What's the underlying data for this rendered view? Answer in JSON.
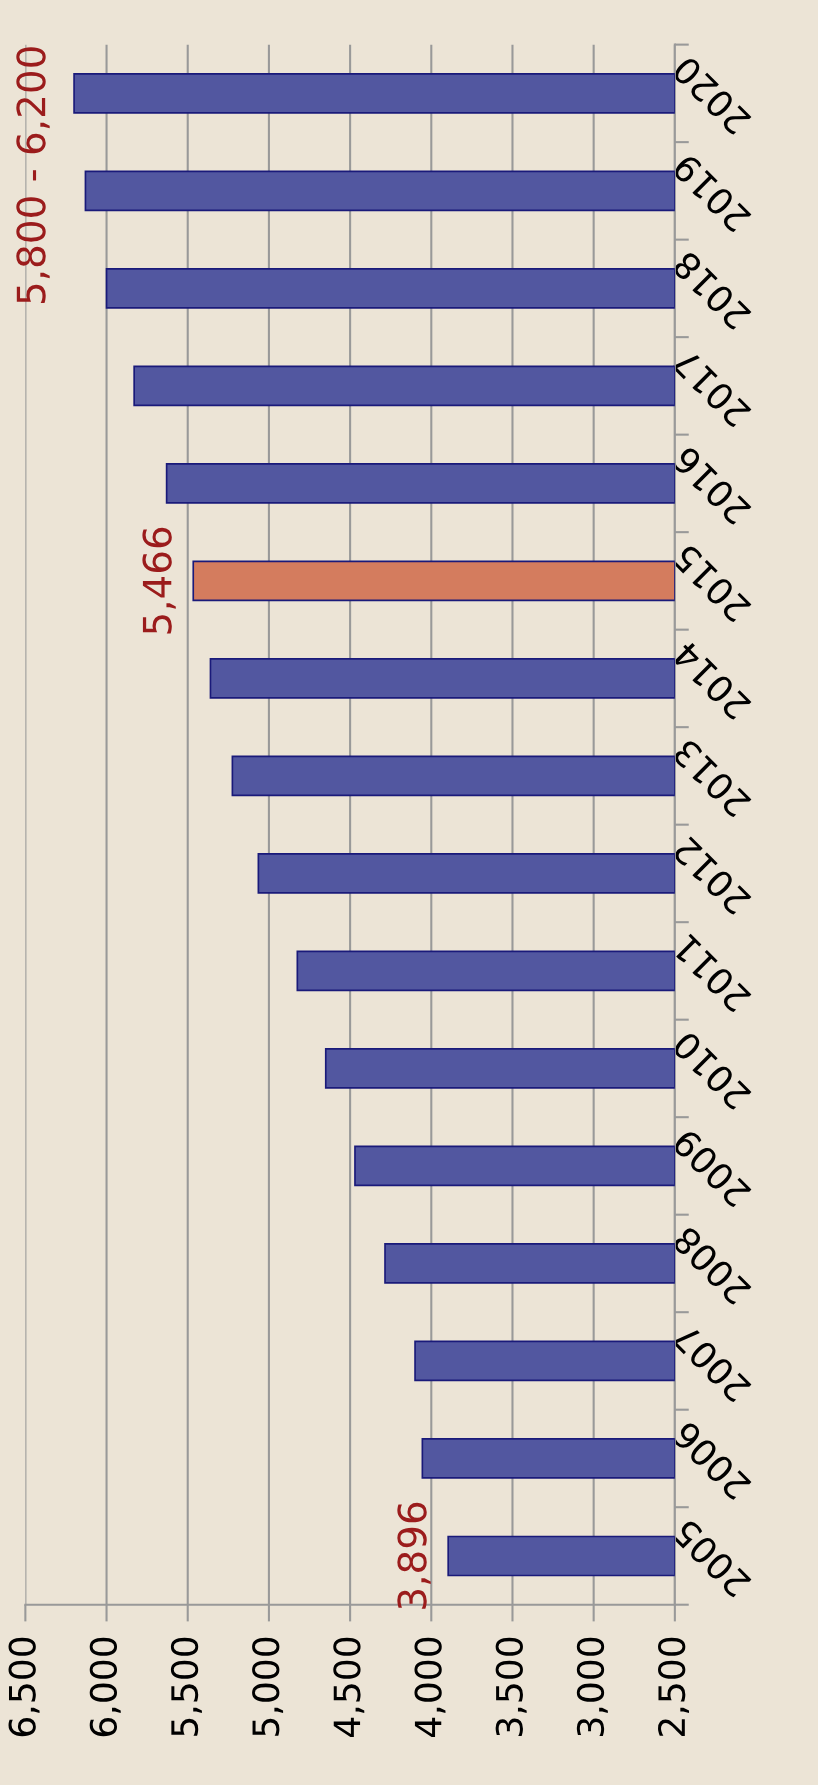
{
  "chart_data": {
    "type": "bar",
    "orientation": "horizontal",
    "categories": [
      "2020",
      "2019",
      "2018",
      "2017",
      "2016",
      "2015",
      "2014",
      "2013",
      "2012",
      "2011",
      "2010",
      "2009",
      "2008",
      "2007",
      "2006",
      "2005"
    ],
    "values": [
      6200,
      6130,
      6000,
      5830,
      5630,
      5466,
      5360,
      5225,
      5065,
      4825,
      4650,
      4470,
      4285,
      4100,
      4055,
      3896
    ],
    "colors": [
      "#5257a0",
      "#5257a0",
      "#5257a0",
      "#5257a0",
      "#5257a0",
      "#d47c5e",
      "#5257a0",
      "#5257a0",
      "#5257a0",
      "#5257a0",
      "#5257a0",
      "#5257a0",
      "#5257a0",
      "#5257a0",
      "#5257a0",
      "#5257a0"
    ],
    "value_labels": [
      null,
      null,
      null,
      null,
      null,
      "5,466",
      null,
      null,
      null,
      null,
      null,
      null,
      null,
      null,
      null,
      "3,896"
    ],
    "annotations": [
      "5,800 - 6,200"
    ],
    "xlim": [
      6500,
      2500
    ],
    "xticks": [
      {
        "value": 6500,
        "label": "6,500"
      },
      {
        "value": 6000,
        "label": "6,000"
      },
      {
        "value": 5500,
        "label": "5,500"
      },
      {
        "value": 5000,
        "label": "5,000"
      },
      {
        "value": 4500,
        "label": "4,500"
      },
      {
        "value": 4000,
        "label": "4,000"
      },
      {
        "value": 3500,
        "label": "3,500"
      },
      {
        "value": 3000,
        "label": "3,000"
      },
      {
        "value": 2500,
        "label": "2,500"
      }
    ],
    "grid": "x"
  }
}
